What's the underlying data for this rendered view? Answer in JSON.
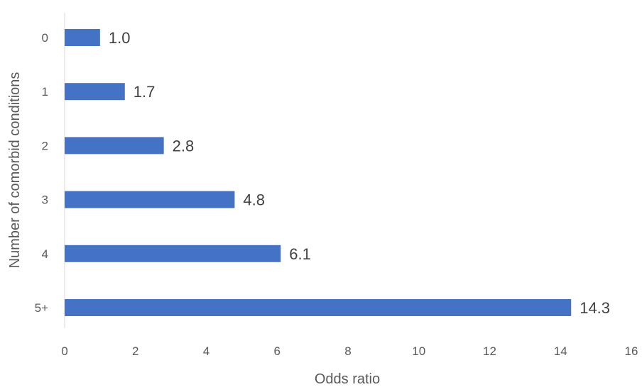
{
  "chart_data": {
    "type": "bar",
    "orientation": "horizontal",
    "categories": [
      "0",
      "1",
      "2",
      "3",
      "4",
      "5+"
    ],
    "values": [
      1.0,
      1.7,
      2.8,
      4.8,
      6.1,
      14.3
    ],
    "data_labels": [
      "1.0",
      "1.7",
      "2.8",
      "4.8",
      "6.1",
      "14.3"
    ],
    "xlabel": "Odds ratio",
    "ylabel": "Number of comorbid conditions",
    "xlim": [
      0,
      16
    ],
    "xticks": [
      "0",
      "2",
      "4",
      "6",
      "8",
      "10",
      "12",
      "14",
      "16"
    ],
    "bar_color": "#4472C4",
    "grid": false,
    "legend": "none"
  }
}
